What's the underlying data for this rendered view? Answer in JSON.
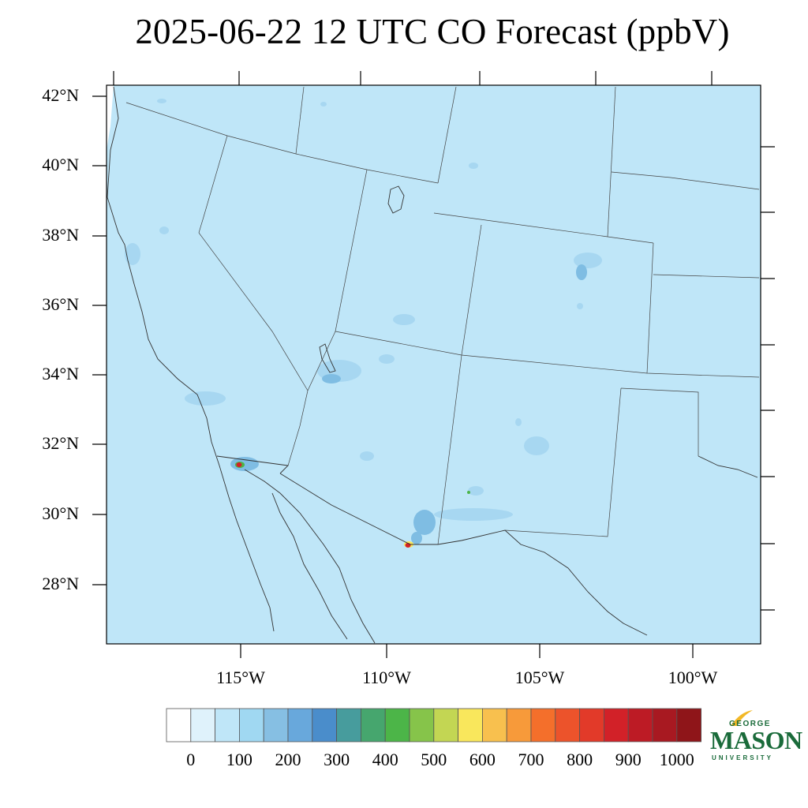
{
  "title": "2025-06-22 12 UTC CO Forecast (ppbV)",
  "colors": {
    "background_fill": "#bfe6f8",
    "plume_mid": "#7fbde3",
    "plume_dark": "#4a8fcd",
    "border": "#333333"
  },
  "map": {
    "lat_labels": [
      "42°N",
      "40°N",
      "38°N",
      "36°N",
      "34°N",
      "32°N",
      "30°N",
      "28°N"
    ],
    "lon_labels": [
      "115°W",
      "110°W",
      "105°W",
      "100°W"
    ]
  },
  "colorbar": {
    "colors": [
      "#ffffff",
      "#dff2fb",
      "#bfe6f8",
      "#a0d8f2",
      "#86bfe3",
      "#68a8dc",
      "#4a8dcb",
      "#479c9d",
      "#46a66e",
      "#4cb548",
      "#86c44a",
      "#c3d653",
      "#f9e75c",
      "#f8c04e",
      "#f79a3a",
      "#f46f2b",
      "#ec532b",
      "#e23a29",
      "#d22128",
      "#bd1b25",
      "#a81921",
      "#8f1519"
    ],
    "labels": [
      "0",
      "100",
      "200",
      "300",
      "400",
      "500",
      "600",
      "700",
      "800",
      "900",
      "1000"
    ]
  },
  "logo": {
    "top": "GEORGE",
    "main": "MASON",
    "bottom": "UNIVERSITY"
  }
}
